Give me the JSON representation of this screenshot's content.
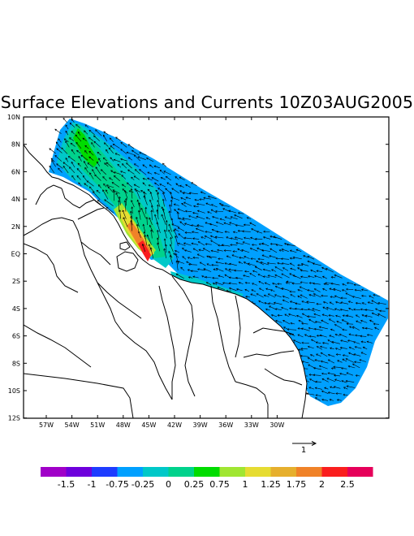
{
  "title": "Surface Elevations and Currents 10Z03AUG2005",
  "y_axis_labels": [
    "10N",
    "8N",
    "6N",
    "4N",
    "2N",
    "EQ",
    "2S",
    "4S",
    "6S",
    "8S",
    "10S",
    "12S"
  ],
  "x_axis_labels": [
    "57W",
    "54W",
    "51W",
    "48W",
    "45W",
    "42W",
    "39W",
    "36W",
    "33W",
    "30W"
  ],
  "reference_vector_label": "1",
  "colorbar": {
    "colors": [
      "#a000c8",
      "#6e00dc",
      "#1e3cff",
      "#00a0ff",
      "#00c8c8",
      "#00d28c",
      "#00dc00",
      "#a0e632",
      "#e6dc32",
      "#e6af2d",
      "#f08228",
      "#fa1e1e",
      "#e6005a"
    ],
    "labels": [
      "-1.5",
      "-1",
      "-0.75",
      "-0.25",
      "0",
      "0.25",
      "0.75",
      "1",
      "1.25",
      "1.75",
      "2",
      "2.5"
    ]
  }
}
